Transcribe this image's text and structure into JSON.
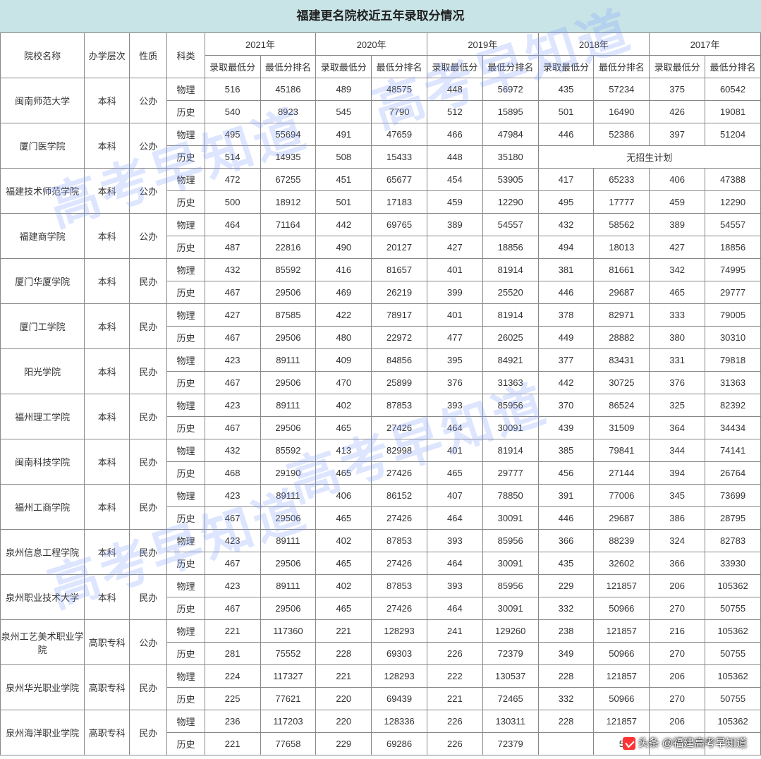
{
  "title": "福建更名院校近五年录取分情况",
  "watermark_text": "高考早知道",
  "credit_text": "头条 @福建高考早知道",
  "headers": {
    "school": "院校名称",
    "level": "办学层次",
    "nature": "性质",
    "subject": "科类",
    "years": [
      "2021年",
      "2020年",
      "2019年",
      "2018年",
      "2017年"
    ],
    "sub": {
      "score": "录取最低分",
      "rank": "最低分排名"
    }
  },
  "no_plan_text": "无招生计划",
  "schools": [
    {
      "name": "闽南师范大学",
      "level": "本科",
      "nature": "公办",
      "rows": [
        {
          "subj": "物理",
          "y": [
            [
              "516",
              "45186"
            ],
            [
              "489",
              "48575"
            ],
            [
              "448",
              "56972"
            ],
            [
              "435",
              "57234"
            ],
            [
              "375",
              "60542"
            ]
          ]
        },
        {
          "subj": "历史",
          "y": [
            [
              "540",
              "8923"
            ],
            [
              "545",
              "7790"
            ],
            [
              "512",
              "15895"
            ],
            [
              "501",
              "16490"
            ],
            [
              "426",
              "19081"
            ]
          ]
        }
      ]
    },
    {
      "name": "厦门医学院",
      "level": "本科",
      "nature": "公办",
      "rows": [
        {
          "subj": "物理",
          "y": [
            [
              "495",
              "55694"
            ],
            [
              "491",
              "47659"
            ],
            [
              "466",
              "47984"
            ],
            [
              "446",
              "52386"
            ],
            [
              "397",
              "51204"
            ]
          ]
        },
        {
          "subj": "历史",
          "y": [
            [
              "514",
              "14935"
            ],
            [
              "508",
              "15433"
            ],
            [
              "448",
              "35180"
            ]
          ],
          "merge_last": true
        }
      ]
    },
    {
      "name": "福建技术师范学院",
      "level": "本科",
      "nature": "公办",
      "rows": [
        {
          "subj": "物理",
          "y": [
            [
              "472",
              "67255"
            ],
            [
              "451",
              "65677"
            ],
            [
              "454",
              "53905"
            ],
            [
              "417",
              "65233"
            ],
            [
              "406",
              "47388"
            ]
          ]
        },
        {
          "subj": "历史",
          "y": [
            [
              "500",
              "18912"
            ],
            [
              "501",
              "17183"
            ],
            [
              "459",
              "12290"
            ],
            [
              "495",
              "17777"
            ],
            [
              "459",
              "12290"
            ]
          ]
        }
      ]
    },
    {
      "name": "福建商学院",
      "level": "本科",
      "nature": "公办",
      "rows": [
        {
          "subj": "物理",
          "y": [
            [
              "464",
              "71164"
            ],
            [
              "442",
              "69765"
            ],
            [
              "389",
              "54557"
            ],
            [
              "432",
              "58562"
            ],
            [
              "389",
              "54557"
            ]
          ]
        },
        {
          "subj": "历史",
          "y": [
            [
              "487",
              "22816"
            ],
            [
              "490",
              "20127"
            ],
            [
              "427",
              "18856"
            ],
            [
              "494",
              "18013"
            ],
            [
              "427",
              "18856"
            ]
          ]
        }
      ]
    },
    {
      "name": "厦门华厦学院",
      "level": "本科",
      "nature": "民办",
      "rows": [
        {
          "subj": "物理",
          "y": [
            [
              "432",
              "85592"
            ],
            [
              "416",
              "81657"
            ],
            [
              "401",
              "81914"
            ],
            [
              "381",
              "81661"
            ],
            [
              "342",
              "74995"
            ]
          ]
        },
        {
          "subj": "历史",
          "y": [
            [
              "467",
              "29506"
            ],
            [
              "469",
              "26219"
            ],
            [
              "399",
              "25520"
            ],
            [
              "446",
              "29687"
            ],
            [
              "465",
              "29777"
            ]
          ]
        }
      ]
    },
    {
      "name": "厦门工学院",
      "level": "本科",
      "nature": "民办",
      "rows": [
        {
          "subj": "物理",
          "y": [
            [
              "427",
              "87585"
            ],
            [
              "422",
              "78917"
            ],
            [
              "401",
              "81914"
            ],
            [
              "378",
              "82971"
            ],
            [
              "333",
              "79005"
            ]
          ]
        },
        {
          "subj": "历史",
          "y": [
            [
              "467",
              "29506"
            ],
            [
              "480",
              "22972"
            ],
            [
              "477",
              "26025"
            ],
            [
              "449",
              "28882"
            ],
            [
              "380",
              "30310"
            ]
          ]
        }
      ]
    },
    {
      "name": "阳光学院",
      "level": "本科",
      "nature": "民办",
      "rows": [
        {
          "subj": "物理",
          "y": [
            [
              "423",
              "89111"
            ],
            [
              "409",
              "84856"
            ],
            [
              "395",
              "84921"
            ],
            [
              "377",
              "83431"
            ],
            [
              "331",
              "79818"
            ]
          ]
        },
        {
          "subj": "历史",
          "y": [
            [
              "467",
              "29506"
            ],
            [
              "470",
              "25899"
            ],
            [
              "376",
              "31363"
            ],
            [
              "442",
              "30725"
            ],
            [
              "376",
              "31363"
            ]
          ]
        }
      ]
    },
    {
      "name": "福州理工学院",
      "level": "本科",
      "nature": "民办",
      "rows": [
        {
          "subj": "物理",
          "y": [
            [
              "423",
              "89111"
            ],
            [
              "402",
              "87853"
            ],
            [
              "393",
              "85956"
            ],
            [
              "370",
              "86524"
            ],
            [
              "325",
              "82392"
            ]
          ]
        },
        {
          "subj": "历史",
          "y": [
            [
              "467",
              "29506"
            ],
            [
              "465",
              "27426"
            ],
            [
              "464",
              "30091"
            ],
            [
              "439",
              "31509"
            ],
            [
              "364",
              "34434"
            ]
          ]
        }
      ]
    },
    {
      "name": "闽南科技学院",
      "level": "本科",
      "nature": "民办",
      "rows": [
        {
          "subj": "物理",
          "y": [
            [
              "432",
              "85592"
            ],
            [
              "413",
              "82998"
            ],
            [
              "401",
              "81914"
            ],
            [
              "385",
              "79841"
            ],
            [
              "344",
              "74141"
            ]
          ]
        },
        {
          "subj": "历史",
          "y": [
            [
              "468",
              "29190"
            ],
            [
              "465",
              "27426"
            ],
            [
              "465",
              "29777"
            ],
            [
              "456",
              "27144"
            ],
            [
              "394",
              "26764"
            ]
          ]
        }
      ]
    },
    {
      "name": "福州工商学院",
      "level": "本科",
      "nature": "民办",
      "rows": [
        {
          "subj": "物理",
          "y": [
            [
              "423",
              "89111"
            ],
            [
              "406",
              "86152"
            ],
            [
              "407",
              "78850"
            ],
            [
              "391",
              "77006"
            ],
            [
              "345",
              "73699"
            ]
          ]
        },
        {
          "subj": "历史",
          "y": [
            [
              "467",
              "29506"
            ],
            [
              "465",
              "27426"
            ],
            [
              "464",
              "30091"
            ],
            [
              "446",
              "29687"
            ],
            [
              "386",
              "28795"
            ]
          ]
        }
      ]
    },
    {
      "name": "泉州信息工程学院",
      "level": "本科",
      "nature": "民办",
      "rows": [
        {
          "subj": "物理",
          "y": [
            [
              "423",
              "89111"
            ],
            [
              "402",
              "87853"
            ],
            [
              "393",
              "85956"
            ],
            [
              "366",
              "88239"
            ],
            [
              "324",
              "82783"
            ]
          ]
        },
        {
          "subj": "历史",
          "y": [
            [
              "467",
              "29506"
            ],
            [
              "465",
              "27426"
            ],
            [
              "464",
              "30091"
            ],
            [
              "435",
              "32602"
            ],
            [
              "366",
              "33930"
            ]
          ]
        }
      ]
    },
    {
      "name": "泉州职业技术大学",
      "level": "本科",
      "nature": "民办",
      "rows": [
        {
          "subj": "物理",
          "y": [
            [
              "423",
              "89111"
            ],
            [
              "402",
              "87853"
            ],
            [
              "393",
              "85956"
            ],
            [
              "229",
              "121857"
            ],
            [
              "206",
              "105362"
            ]
          ]
        },
        {
          "subj": "历史",
          "y": [
            [
              "467",
              "29506"
            ],
            [
              "465",
              "27426"
            ],
            [
              "464",
              "30091"
            ],
            [
              "332",
              "50966"
            ],
            [
              "270",
              "50755"
            ]
          ]
        }
      ]
    },
    {
      "name": "泉州工艺美术职业学院",
      "level": "高职专科",
      "nature": "公办",
      "rows": [
        {
          "subj": "物理",
          "y": [
            [
              "221",
              "117360"
            ],
            [
              "221",
              "128293"
            ],
            [
              "241",
              "129260"
            ],
            [
              "238",
              "121857"
            ],
            [
              "216",
              "105362"
            ]
          ]
        },
        {
          "subj": "历史",
          "y": [
            [
              "281",
              "75552"
            ],
            [
              "228",
              "69303"
            ],
            [
              "226",
              "72379"
            ],
            [
              "349",
              "50966"
            ],
            [
              "270",
              "50755"
            ]
          ]
        }
      ]
    },
    {
      "name": "泉州华光职业学院",
      "level": "高职专科",
      "nature": "民办",
      "rows": [
        {
          "subj": "物理",
          "y": [
            [
              "224",
              "117327"
            ],
            [
              "221",
              "128293"
            ],
            [
              "222",
              "130537"
            ],
            [
              "228",
              "121857"
            ],
            [
              "206",
              "105362"
            ]
          ]
        },
        {
          "subj": "历史",
          "y": [
            [
              "225",
              "77621"
            ],
            [
              "220",
              "69439"
            ],
            [
              "221",
              "72465"
            ],
            [
              "332",
              "50966"
            ],
            [
              "270",
              "50755"
            ]
          ]
        }
      ]
    },
    {
      "name": "泉州海洋职业学院",
      "level": "高职专科",
      "nature": "民办",
      "rows": [
        {
          "subj": "物理",
          "y": [
            [
              "236",
              "117203"
            ],
            [
              "220",
              "128336"
            ],
            [
              "226",
              "130311"
            ],
            [
              "228",
              "121857"
            ],
            [
              "206",
              "105362"
            ]
          ]
        },
        {
          "subj": "历史",
          "y": [
            [
              "221",
              "77658"
            ],
            [
              "229",
              "69286"
            ],
            [
              "226",
              "72379"
            ],
            [
              "",
              "5"
            ],
            [
              "",
              ""
            ]
          ]
        }
      ]
    }
  ]
}
